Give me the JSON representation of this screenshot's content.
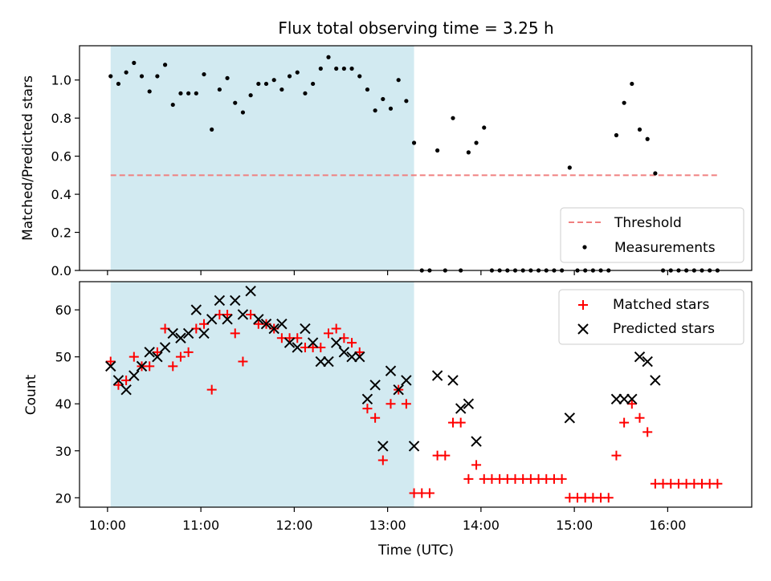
{
  "chart_data": [
    {
      "type": "scatter",
      "title": "Flux total observing time = 3.25 h",
      "ylabel": "Matched/Predicted stars",
      "xlabel": "",
      "xlim": [
        "09:42",
        "16:54"
      ],
      "ylim": [
        0,
        1.18
      ],
      "yticks": [
        "0.0",
        "0.2",
        "0.4",
        "0.6",
        "0.8",
        "1.0"
      ],
      "grid": false,
      "legend_position": "lower-right",
      "shaded_span": [
        "10:02",
        "13:17"
      ],
      "threshold": {
        "name": "Threshold",
        "value": 0.5,
        "x_range": [
          "10:02",
          "16:32"
        ],
        "color": "#f08080"
      },
      "series": [
        {
          "name": "Measurements",
          "marker": "dot",
          "color": "#000000",
          "x": [
            "10:02",
            "10:07",
            "10:12",
            "10:17",
            "10:22",
            "10:27",
            "10:32",
            "10:37",
            "10:42",
            "10:47",
            "10:52",
            "10:57",
            "11:02",
            "11:07",
            "11:12",
            "11:17",
            "11:22",
            "11:27",
            "11:32",
            "11:37",
            "11:42",
            "11:47",
            "11:52",
            "11:57",
            "12:02",
            "12:07",
            "12:12",
            "12:17",
            "12:22",
            "12:27",
            "12:32",
            "12:37",
            "12:42",
            "12:47",
            "12:52",
            "12:57",
            "13:02",
            "13:07",
            "13:12",
            "13:17",
            "13:22",
            "13:27",
            "13:32",
            "13:37",
            "13:42",
            "13:47",
            "13:52",
            "13:57",
            "14:02",
            "14:07",
            "14:12",
            "14:17",
            "14:22",
            "14:27",
            "14:32",
            "14:37",
            "14:42",
            "14:47",
            "14:52",
            "14:57",
            "15:02",
            "15:07",
            "15:12",
            "15:17",
            "15:22",
            "15:27",
            "15:32",
            "15:37",
            "15:42",
            "15:47",
            "15:52",
            "15:57",
            "16:02",
            "16:07",
            "16:12",
            "16:17",
            "16:22",
            "16:27",
            "16:32"
          ],
          "y": [
            1.02,
            0.98,
            1.04,
            1.09,
            1.02,
            0.94,
            1.02,
            1.08,
            0.87,
            0.93,
            0.93,
            0.93,
            1.03,
            0.74,
            0.95,
            1.01,
            0.88,
            0.83,
            0.92,
            0.98,
            0.98,
            1.0,
            0.95,
            1.02,
            1.04,
            0.93,
            0.98,
            1.06,
            1.12,
            1.06,
            1.06,
            1.06,
            1.02,
            0.95,
            0.84,
            0.9,
            0.85,
            1.0,
            0.89,
            0.67,
            0,
            0,
            0.63,
            0,
            0.8,
            0,
            0.62,
            0.67,
            0.75,
            0,
            0,
            0,
            0,
            0,
            0,
            0,
            0,
            0,
            0,
            0.54,
            0,
            0,
            0,
            0,
            0,
            0.71,
            0.88,
            0.98,
            0.74,
            0.69,
            0.51,
            0,
            0,
            0,
            0,
            0,
            0,
            0,
            0
          ]
        }
      ]
    },
    {
      "type": "scatter",
      "title": "",
      "ylabel": "Count",
      "xlabel": "Time (UTC)",
      "xlim": [
        "09:42",
        "16:54"
      ],
      "xticks": [
        "10:00",
        "11:00",
        "12:00",
        "13:00",
        "14:00",
        "15:00",
        "16:00"
      ],
      "ylim": [
        18,
        66
      ],
      "yticks": [
        "20",
        "30",
        "40",
        "50",
        "60"
      ],
      "grid": false,
      "legend_position": "upper-right",
      "shaded_span": [
        "10:02",
        "13:17"
      ],
      "series": [
        {
          "name": "Matched stars",
          "marker": "plus",
          "color": "#ff0000",
          "x": [
            "10:02",
            "10:07",
            "10:12",
            "10:17",
            "10:22",
            "10:27",
            "10:32",
            "10:37",
            "10:42",
            "10:47",
            "10:52",
            "10:57",
            "11:02",
            "11:07",
            "11:12",
            "11:17",
            "11:22",
            "11:27",
            "11:32",
            "11:37",
            "11:42",
            "11:47",
            "11:52",
            "11:57",
            "12:02",
            "12:07",
            "12:12",
            "12:17",
            "12:22",
            "12:27",
            "12:32",
            "12:37",
            "12:42",
            "12:47",
            "12:52",
            "12:57",
            "13:02",
            "13:07",
            "13:12",
            "13:17",
            "13:22",
            "13:27",
            "13:32",
            "13:37",
            "13:42",
            "13:47",
            "13:52",
            "13:57",
            "14:02",
            "14:07",
            "14:12",
            "14:17",
            "14:22",
            "14:27",
            "14:32",
            "14:37",
            "14:42",
            "14:47",
            "14:52",
            "14:57",
            "15:02",
            "15:07",
            "15:12",
            "15:17",
            "15:22",
            "15:27",
            "15:32",
            "15:37",
            "15:42",
            "15:47",
            "15:52",
            "15:57",
            "16:02",
            "16:07",
            "16:12",
            "16:17",
            "16:22",
            "16:27",
            "16:32"
          ],
          "y": [
            49,
            44,
            45,
            50,
            48,
            48,
            51,
            56,
            48,
            50,
            51,
            56,
            57,
            43,
            59,
            59,
            55,
            49,
            59,
            57,
            57,
            56,
            54,
            54,
            54,
            52,
            52,
            52,
            55,
            56,
            54,
            53,
            51,
            39,
            37,
            28,
            40,
            43,
            40,
            21,
            21,
            21,
            29,
            29,
            36,
            36,
            24,
            27,
            24,
            24,
            24,
            24,
            24,
            24,
            24,
            24,
            24,
            24,
            24,
            20,
            20,
            20,
            20,
            20,
            20,
            29,
            36,
            40,
            37,
            34,
            23,
            23,
            23,
            23,
            23,
            23,
            23,
            23,
            23
          ]
        },
        {
          "name": "Predicted stars",
          "marker": "x",
          "color": "#000000",
          "x": [
            "10:02",
            "10:07",
            "10:12",
            "10:17",
            "10:22",
            "10:27",
            "10:32",
            "10:37",
            "10:42",
            "10:47",
            "10:52",
            "10:57",
            "11:02",
            "11:07",
            "11:12",
            "11:17",
            "11:22",
            "11:27",
            "11:32",
            "11:37",
            "11:42",
            "11:47",
            "11:52",
            "11:57",
            "12:02",
            "12:07",
            "12:12",
            "12:17",
            "12:22",
            "12:27",
            "12:32",
            "12:37",
            "12:42",
            "12:47",
            "12:52",
            "12:57",
            "13:02",
            "13:07",
            "13:12",
            "13:17",
            "13:32",
            "13:42",
            "13:47",
            "13:52",
            "13:57",
            "14:57",
            "15:27",
            "15:32",
            "15:37",
            "15:42",
            "15:47",
            "15:52"
          ],
          "y": [
            48,
            45,
            43,
            46,
            48,
            51,
            50,
            52,
            55,
            54,
            55,
            60,
            55,
            58,
            62,
            58,
            62,
            59,
            64,
            58,
            57,
            56,
            57,
            53,
            52,
            56,
            53,
            49,
            49,
            53,
            51,
            50,
            50,
            41,
            44,
            31,
            47,
            43,
            45,
            31,
            46,
            45,
            39,
            40,
            32,
            37,
            41,
            41,
            41,
            50,
            49,
            45
          ]
        }
      ]
    }
  ]
}
